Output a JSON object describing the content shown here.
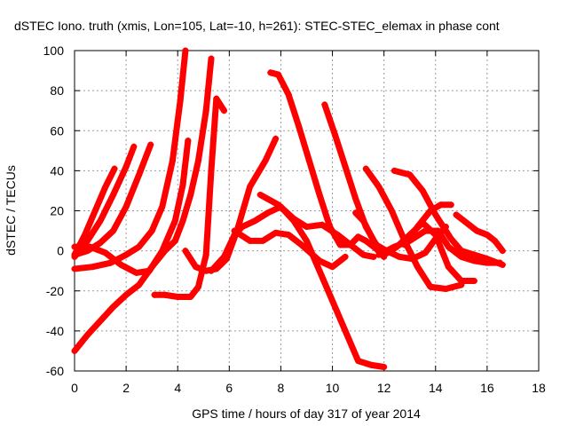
{
  "chart_data": {
    "type": "line",
    "title": "dSTEC Iono. truth (xmis, Lon=105, Lat=-10, h=261): STEC-STEC_elemax in phase cont",
    "xlabel": "GPS time / hours of day 317 of year 2014",
    "ylabel": "dSTEC  / TECUs",
    "xlim": [
      0,
      18
    ],
    "ylim": [
      -60,
      100
    ],
    "xticks": [
      "0",
      "2",
      "4",
      "6",
      "8",
      "10",
      "12",
      "14",
      "16",
      "18"
    ],
    "yticks": [
      "-60",
      "-40",
      "-20",
      "0",
      "20",
      "40",
      "60",
      "80",
      "100"
    ],
    "grid": true,
    "legend": "none",
    "marker": "plus",
    "color": "#ff0000",
    "series": [
      {
        "x": [
          0,
          0.4,
          0.8,
          1.2,
          1.55
        ],
        "y": [
          -2,
          8,
          20,
          32,
          41
        ]
      },
      {
        "x": [
          0,
          0.5,
          1.0,
          1.5,
          2.0,
          2.3
        ],
        "y": [
          -3,
          5,
          15,
          28,
          42,
          52
        ]
      },
      {
        "x": [
          0,
          0.5,
          1.0,
          1.5,
          2.0,
          2.5,
          2.95
        ],
        "y": [
          -2,
          0,
          4,
          10,
          22,
          38,
          53
        ]
      },
      {
        "x": [
          0,
          0.7,
          1.4,
          2.0,
          2.5,
          3.0,
          3.4,
          3.8,
          4.1,
          4.3
        ],
        "y": [
          -9,
          -8,
          -6,
          -2,
          2,
          10,
          22,
          45,
          75,
          100
        ]
      },
      {
        "x": [
          0,
          0.6,
          1.2,
          1.8,
          2.4,
          2.9,
          3.4,
          3.9,
          4.2,
          4.4
        ],
        "y": [
          2,
          2,
          -1,
          -7,
          -11,
          -10,
          0,
          15,
          33,
          55
        ]
      },
      {
        "x": [
          0,
          0.5,
          1.0,
          1.5,
          2.0,
          2.5,
          3.0,
          3.5,
          3.9,
          4.2,
          4.5,
          4.8,
          5.1,
          5.3
        ],
        "y": [
          -50,
          -42,
          -35,
          -28,
          -22,
          -17,
          -8,
          0,
          5,
          15,
          28,
          45,
          70,
          96
        ]
      },
      {
        "x": [
          3.1,
          3.5,
          4.0,
          4.5,
          4.8,
          5.1,
          5.3,
          5.5,
          5.8
        ],
        "y": [
          -22,
          -22,
          -23,
          -23,
          -18,
          -2,
          40,
          76,
          70
        ]
      },
      {
        "x": [
          4.3,
          4.7,
          5.1,
          5.5,
          5.9,
          6.3,
          6.8,
          7.4,
          7.8
        ],
        "y": [
          0,
          -8,
          -10,
          -9,
          -4,
          10,
          32,
          45,
          56
        ]
      },
      {
        "x": [
          5.3,
          5.8,
          6.2,
          6.5,
          7.0,
          7.5,
          8.0,
          8.5,
          9.0,
          9.5,
          10.0,
          10.5,
          11.0,
          11.5,
          12.0
        ],
        "y": [
          -10,
          -3,
          8,
          12,
          15,
          19,
          22,
          15,
          5,
          -10,
          -25,
          -40,
          -55,
          -57,
          -58
        ]
      },
      {
        "x": [
          6.2,
          6.8,
          7.3,
          7.8,
          8.3,
          8.8,
          9.5,
          10.0,
          10.5
        ],
        "y": [
          10,
          5,
          5,
          9,
          8,
          3,
          -5,
          -8,
          -3
        ]
      },
      {
        "x": [
          7.2,
          7.9,
          8.5,
          9.0,
          9.6,
          10.2,
          10.8,
          11.2,
          11.6
        ],
        "y": [
          28,
          23,
          16,
          12,
          13,
          8,
          2,
          -2,
          -3
        ]
      },
      {
        "x": [
          7.6,
          7.9,
          8.3,
          8.7,
          9.1,
          9.5,
          9.9,
          10.3,
          10.7,
          11.0,
          11.3,
          11.7,
          12.0
        ],
        "y": [
          89,
          88,
          78,
          62,
          45,
          28,
          12,
          3,
          3,
          7,
          5,
          1,
          -3
        ]
      },
      {
        "x": [
          9.7,
          10.1,
          10.5,
          10.9,
          11.3,
          11.7,
          12.1,
          12.6,
          13.1,
          13.6,
          14.0,
          14.4
        ],
        "y": [
          73,
          58,
          42,
          26,
          12,
          3,
          0,
          -3,
          -4,
          -1,
          6,
          12
        ]
      },
      {
        "x": [
          10.9,
          11.2,
          11.6,
          12.0,
          12.5,
          13.0,
          13.5,
          14.0,
          14.5,
          15.0,
          15.5
        ],
        "y": [
          19,
          15,
          5,
          -2,
          2,
          8,
          14,
          8,
          -8,
          -15,
          -15
        ]
      },
      {
        "x": [
          11.3,
          11.8,
          12.3,
          12.8,
          13.3,
          13.8,
          14.4,
          15.0
        ],
        "y": [
          41,
          32,
          20,
          5,
          -8,
          -18,
          -19,
          -17
        ]
      },
      {
        "x": [
          11.8,
          12.4,
          13.0,
          13.6,
          14.1,
          14.5,
          15.0,
          15.5,
          16.0,
          16.5
        ],
        "y": [
          -2,
          2,
          5,
          10,
          10,
          2,
          -3,
          -5,
          -6,
          -6
        ]
      },
      {
        "x": [
          12.4,
          13.0,
          13.5,
          14.0,
          14.6,
          15.0,
          15.5,
          16.0,
          16.6
        ],
        "y": [
          40,
          38,
          30,
          18,
          6,
          0,
          -2,
          -4,
          -7
        ]
      },
      {
        "x": [
          12.8,
          13.3,
          13.8,
          14.2,
          14.6
        ],
        "y": [
          3,
          12,
          20,
          23,
          23
        ]
      },
      {
        "x": [
          14.8,
          15.2,
          15.6,
          16.0,
          16.3,
          16.6
        ],
        "y": [
          18,
          14,
          10,
          8,
          5,
          0
        ]
      }
    ]
  }
}
